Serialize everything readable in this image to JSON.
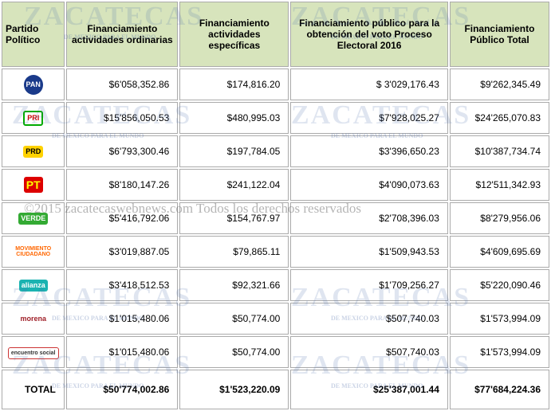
{
  "table": {
    "header": [
      "Partido Político",
      "Financiamiento actividades ordinarias",
      "Financiamiento actividades específicas",
      "Financiamiento público para la obtención del voto Proceso Electoral 2016",
      "Financiamiento Público Total"
    ],
    "rows": [
      [
        "PAN",
        "$6'058,352.86",
        "$174,816.20",
        "$ 3'029,176.43",
        "$9'262,345.49"
      ],
      [
        "PRI",
        "$15'856,050.53",
        "$480,995.03",
        "$7'928,025.27",
        "$24'265,070.83"
      ],
      [
        "PRD",
        "$6'793,300.46",
        "$197,784.05",
        "$3'396,650.23",
        "$10'387,734.74"
      ],
      [
        "PT",
        "$8'180,147.26",
        "$241,122.04",
        "$4'090,073.63",
        "$12'511,342.93"
      ],
      [
        "VERDE",
        "$5'416,792.06",
        "$154,767.97",
        "$2'708,396.03",
        "$8'279,956.06"
      ],
      [
        "MOVIMIENTO CIUDADANO",
        "$3'019,887.05",
        "$79,865.11",
        "$1'509,943.53",
        "$4'609,695.69"
      ],
      [
        "alianza",
        "$3'418,512.53",
        "$92,321.66",
        "$1'709,256.27",
        "$5'220,090.46"
      ],
      [
        "morena",
        "$1'015,480.06",
        "$50,774.00",
        "$507,740.03",
        "$1'573,994.09"
      ],
      [
        "encuentro social",
        "$1'015,480.06",
        "$50,774.00",
        "$507,740.03",
        "$1'573,994.09"
      ]
    ],
    "total": [
      "TOTAL",
      "$50'774,002.86",
      "$1'523,220.09",
      "$25'387,001.44",
      "$77'684,224.36"
    ]
  },
  "watermark": {
    "brand": "ZACATECAS",
    "tag": "DE MEXICO PARA EL MUNDO",
    "copyright": "©2015 zacatecaswebnews.com Todos los derechos reservados"
  }
}
